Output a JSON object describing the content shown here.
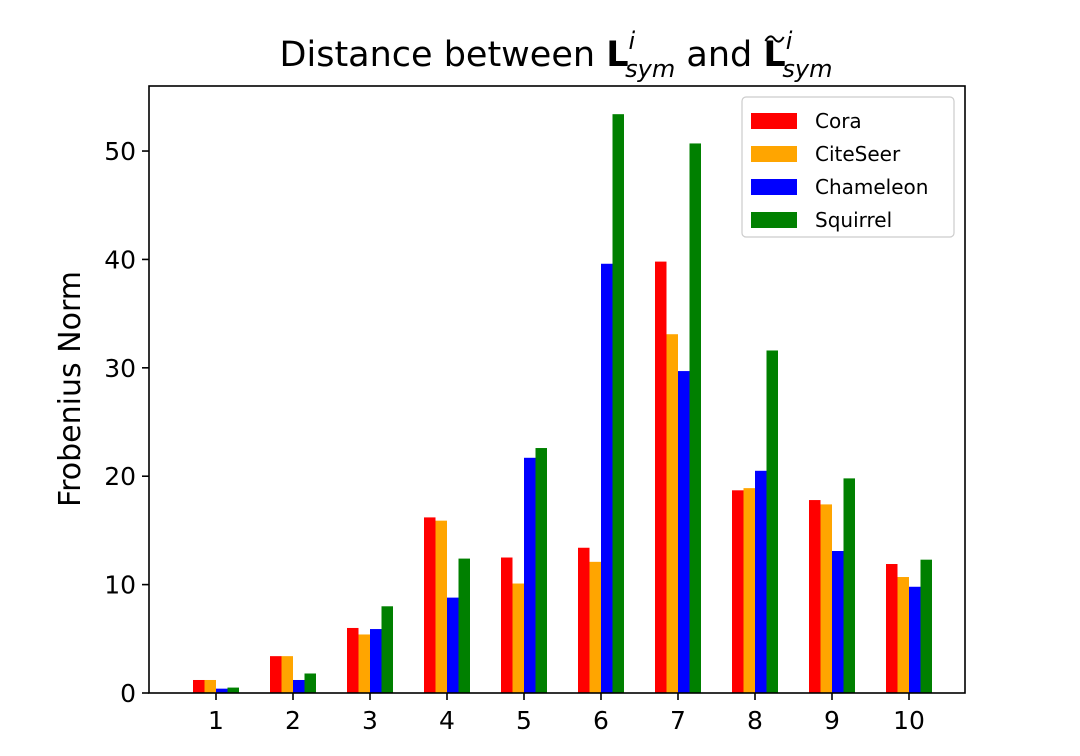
{
  "chart_data": {
    "type": "bar",
    "title": {
      "prefix": "Distance between ",
      "base1": "L",
      "sup1": "i",
      "sub1": "sym",
      "middle": " and ",
      "base2": "L",
      "sup2": "i",
      "sub2": "sym"
    },
    "xlabel": "",
    "ylabel": "Frobenius Norm",
    "categories": [
      "1",
      "2",
      "3",
      "4",
      "5",
      "6",
      "7",
      "8",
      "9",
      "10"
    ],
    "ylim": [
      0,
      56
    ],
    "yticks": [
      0,
      10,
      20,
      30,
      40,
      50
    ],
    "grid": false,
    "legend_position": "top-right",
    "series": [
      {
        "name": "Cora",
        "color": "#ff0000",
        "values": [
          1.2,
          3.4,
          6.0,
          16.2,
          12.5,
          13.4,
          39.8,
          18.7,
          17.8,
          11.9
        ]
      },
      {
        "name": "CiteSeer",
        "color": "#ffa500",
        "values": [
          1.2,
          3.4,
          5.4,
          15.9,
          10.1,
          12.1,
          33.1,
          18.9,
          17.4,
          10.7
        ]
      },
      {
        "name": "Chameleon",
        "color": "#0000ff",
        "values": [
          0.4,
          1.2,
          5.9,
          8.8,
          21.7,
          39.6,
          29.7,
          20.5,
          13.1,
          9.8
        ]
      },
      {
        "name": "Squirrel",
        "color": "#008000",
        "values": [
          0.5,
          1.8,
          8.0,
          12.4,
          22.6,
          53.4,
          50.7,
          31.6,
          19.8,
          12.3
        ]
      }
    ]
  }
}
